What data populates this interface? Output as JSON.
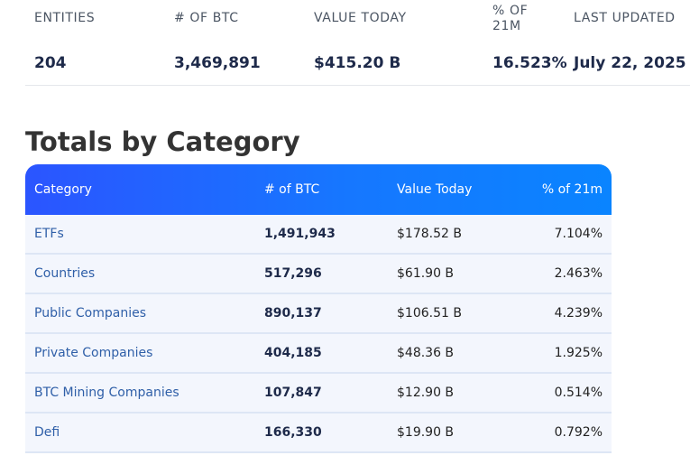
{
  "summary": {
    "headers": {
      "entities": "ENTITIES",
      "btc": "# OF BTC",
      "value": "VALUE TODAY",
      "pct": "% OF 21M",
      "updated": "LAST UPDATED"
    },
    "values": {
      "entities": "204",
      "btc": "3,469,891",
      "value": "$415.20 B",
      "pct": "16.523%",
      "updated": "July 22, 2025"
    }
  },
  "section": {
    "title": "Totals by Category"
  },
  "table": {
    "headers": {
      "category": "Category",
      "btc": "# of BTC",
      "value": "Value Today",
      "pct": "% of 21m"
    },
    "rows": [
      {
        "category": "ETFs",
        "btc": "1,491,943",
        "value": "$178.52 B",
        "pct": "7.104%"
      },
      {
        "category": "Countries",
        "btc": "517,296",
        "value": "$61.90 B",
        "pct": "2.463%"
      },
      {
        "category": "Public Companies",
        "btc": "890,137",
        "value": "$106.51 B",
        "pct": "4.239%"
      },
      {
        "category": "Private Companies",
        "btc": "404,185",
        "value": "$48.36 B",
        "pct": "1.925%"
      },
      {
        "category": "BTC Mining Companies",
        "btc": "107,847",
        "value": "$12.90 B",
        "pct": "0.514%"
      },
      {
        "category": "Defi",
        "btc": "166,330",
        "value": "$19.90 B",
        "pct": "0.792%"
      }
    ]
  }
}
